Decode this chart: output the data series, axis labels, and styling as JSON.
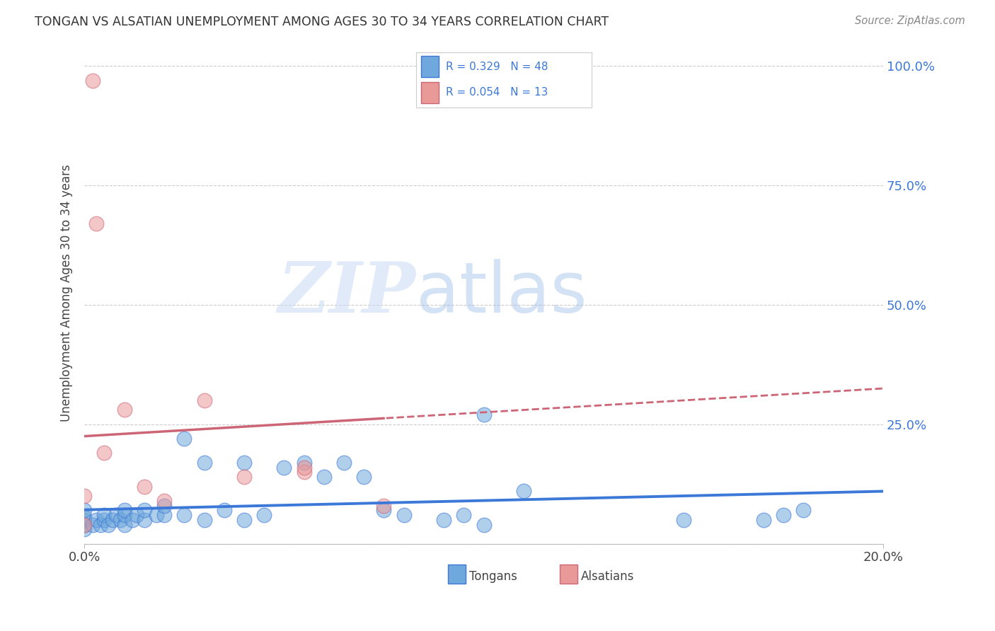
{
  "title": "TONGAN VS ALSATIAN UNEMPLOYMENT AMONG AGES 30 TO 34 YEARS CORRELATION CHART",
  "source": "Source: ZipAtlas.com",
  "ylabel": "Unemployment Among Ages 30 to 34 years",
  "xlim": [
    0.0,
    0.2
  ],
  "ylim": [
    0.0,
    1.05
  ],
  "yticks": [
    0.0,
    0.25,
    0.5,
    0.75,
    1.0
  ],
  "yticklabels_right": [
    "",
    "25.0%",
    "50.0%",
    "75.0%",
    "100.0%"
  ],
  "tongans_R": 0.329,
  "tongans_N": 48,
  "alsatians_R": 0.054,
  "alsatians_N": 13,
  "tongans_color": "#6fa8dc",
  "alsatians_color": "#ea9999",
  "trendline_tongans_color": "#3c78d8",
  "trendline_alsatians_color": "#cc6677",
  "watermark_zip": "ZIP",
  "watermark_atlas": "atlas",
  "tongans_x": [
    0.0,
    0.0,
    0.0,
    0.0,
    0.0,
    0.002,
    0.003,
    0.004,
    0.005,
    0.005,
    0.006,
    0.007,
    0.008,
    0.009,
    0.01,
    0.01,
    0.01,
    0.012,
    0.013,
    0.015,
    0.015,
    0.018,
    0.02,
    0.02,
    0.025,
    0.025,
    0.03,
    0.03,
    0.035,
    0.04,
    0.04,
    0.045,
    0.05,
    0.055,
    0.06,
    0.065,
    0.07,
    0.075,
    0.08,
    0.09,
    0.095,
    0.1,
    0.1,
    0.11,
    0.15,
    0.17,
    0.175,
    0.18
  ],
  "tongans_y": [
    0.03,
    0.04,
    0.05,
    0.055,
    0.07,
    0.04,
    0.05,
    0.04,
    0.05,
    0.06,
    0.04,
    0.05,
    0.06,
    0.05,
    0.04,
    0.06,
    0.07,
    0.05,
    0.06,
    0.05,
    0.07,
    0.06,
    0.06,
    0.08,
    0.06,
    0.22,
    0.05,
    0.17,
    0.07,
    0.05,
    0.17,
    0.06,
    0.16,
    0.17,
    0.14,
    0.17,
    0.14,
    0.07,
    0.06,
    0.05,
    0.06,
    0.04,
    0.27,
    0.11,
    0.05,
    0.05,
    0.06,
    0.07
  ],
  "alsatians_x": [
    0.0,
    0.0,
    0.002,
    0.003,
    0.005,
    0.01,
    0.015,
    0.02,
    0.03,
    0.04,
    0.055,
    0.055,
    0.075
  ],
  "alsatians_y": [
    0.04,
    0.1,
    0.97,
    0.67,
    0.19,
    0.28,
    0.12,
    0.09,
    0.3,
    0.14,
    0.15,
    0.16,
    0.08
  ],
  "alsatians_trendline_intercept": 0.225,
  "alsatians_trendline_slope": 0.5,
  "tongans_trendline_intercept": 0.04,
  "tongans_trendline_slope": 0.75
}
